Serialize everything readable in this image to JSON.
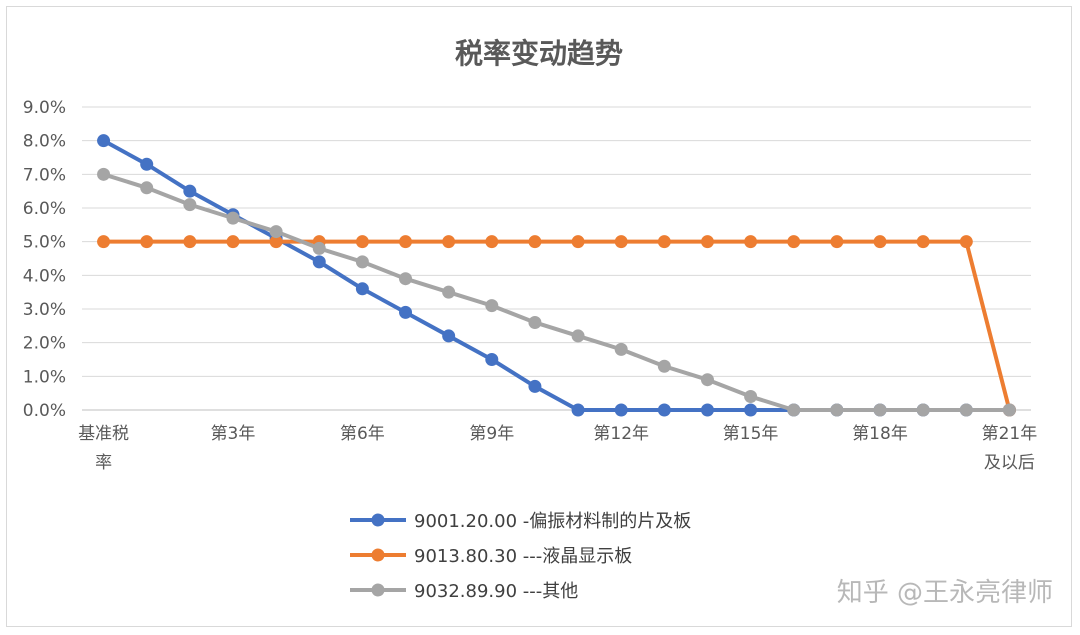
{
  "chart_data": {
    "type": "line",
    "title": "税率变动趋势",
    "categories": [
      "基准税率",
      "第1年",
      "第2年",
      "第3年",
      "第4年",
      "第5年",
      "第6年",
      "第7年",
      "第8年",
      "第9年",
      "第10年",
      "第11年",
      "第12年",
      "第13年",
      "第14年",
      "第15年",
      "第16年",
      "第17年",
      "第18年",
      "第19年",
      "第20年",
      "第21年及以后"
    ],
    "x_tick_labels": [
      {
        "index": 0,
        "lines": [
          "基准税",
          "率"
        ]
      },
      {
        "index": 3,
        "lines": [
          "第3年"
        ]
      },
      {
        "index": 6,
        "lines": [
          "第6年"
        ]
      },
      {
        "index": 9,
        "lines": [
          "第9年"
        ]
      },
      {
        "index": 12,
        "lines": [
          "第12年"
        ]
      },
      {
        "index": 15,
        "lines": [
          "第15年"
        ]
      },
      {
        "index": 18,
        "lines": [
          "第18年"
        ]
      },
      {
        "index": 21,
        "lines": [
          "第21年",
          "及以后"
        ]
      }
    ],
    "y_ticks": [
      "0.0%",
      "1.0%",
      "2.0%",
      "3.0%",
      "4.0%",
      "5.0%",
      "6.0%",
      "7.0%",
      "8.0%",
      "9.0%"
    ],
    "ylim": [
      0,
      0.09
    ],
    "grid": true,
    "legend_position": "bottom",
    "series": [
      {
        "name": "9001.20.00 -偏振材料制的片及板",
        "color": "#4472c4",
        "values": [
          0.08,
          0.073,
          0.065,
          0.058,
          0.051,
          0.044,
          0.036,
          0.029,
          0.022,
          0.015,
          0.007,
          0.0,
          0.0,
          0.0,
          0.0,
          0.0,
          0.0,
          0.0,
          0.0,
          0.0,
          0.0,
          0.0
        ]
      },
      {
        "name": "9013.80.30 ---液晶显示板",
        "color": "#ed7d31",
        "values": [
          0.05,
          0.05,
          0.05,
          0.05,
          0.05,
          0.05,
          0.05,
          0.05,
          0.05,
          0.05,
          0.05,
          0.05,
          0.05,
          0.05,
          0.05,
          0.05,
          0.05,
          0.05,
          0.05,
          0.05,
          0.05,
          0.0
        ]
      },
      {
        "name": "9032.89.90 ---其他",
        "color": "#a5a5a5",
        "values": [
          0.07,
          0.066,
          0.061,
          0.057,
          0.053,
          0.048,
          0.044,
          0.039,
          0.035,
          0.031,
          0.026,
          0.022,
          0.018,
          0.013,
          0.009,
          0.004,
          0.0,
          0.0,
          0.0,
          0.0,
          0.0,
          0.0
        ]
      }
    ]
  },
  "watermark": "知乎 @王永亮律师"
}
